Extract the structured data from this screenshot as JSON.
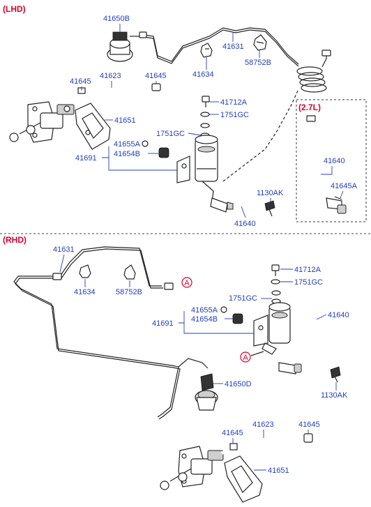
{
  "sections": {
    "lhd": "(LHD)",
    "rhd": "(RHD)",
    "variant_27l": "(2.7L)"
  },
  "callout_ref": "A",
  "lhd_labels": {
    "p41650B": "41650B",
    "p41631": "41631",
    "p41634": "41634",
    "p58752B": "58752B",
    "p41645_left": "41645",
    "p41623": "41623",
    "p41645_right": "41645",
    "p41651": "41651",
    "p41712A": "41712A",
    "p1751GC_top": "1751GC",
    "p1751GC_mid": "1751GC",
    "p41655A": "41655A",
    "p41654B": "41654B",
    "p41691": "41691",
    "p1130AK": "1130AK",
    "p41640": "41640"
  },
  "variant_labels": {
    "p41640": "41640",
    "p41645A": "41645A"
  },
  "rhd_labels": {
    "p41631": "41631",
    "p41634": "41634",
    "p58752B": "58752B",
    "p41712A": "41712A",
    "p1751GC_top": "1751GC",
    "p1751GC_mid": "1751GC",
    "p41640": "41640",
    "p41655A": "41655A",
    "p41654B": "41654B",
    "p41691": "41691",
    "p1130AK": "1130AK",
    "p41650D": "41650D",
    "p41645_left": "41645",
    "p41623": "41623",
    "p41645_right": "41645",
    "p41651": "41651"
  }
}
